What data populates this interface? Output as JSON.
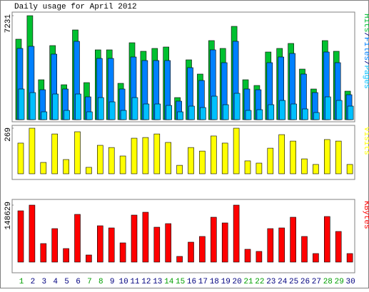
{
  "title": "Daily usage for April 2012",
  "chart_data": [
    {
      "type": "bar",
      "ylim": [
        0,
        7231
      ],
      "yticks": [
        7231
      ],
      "legend_separator": "/",
      "series": [
        {
          "name": "Hits",
          "color": "#00c030",
          "values": [
            5596,
            7231,
            2774,
            5151,
            2427,
            6240,
            2575,
            4854,
            4854,
            2526,
            5349,
            4755,
            4953,
            5052,
            1535,
            4160,
            3170,
            5498,
            4953,
            6488,
            2774,
            2377,
            4705,
            4953,
            5300,
            3516,
            2130,
            5498,
            4755,
            1981
          ]
        },
        {
          "name": "Files",
          "color": "#0080ff",
          "values": [
            4953,
            5101,
            2080,
            4557,
            2130,
            5448,
            1585,
            4259,
            4259,
            2130,
            4358,
            4111,
            4111,
            4111,
            1288,
            3616,
            2724,
            4854,
            3962,
            5448,
            2130,
            2080,
            3962,
            4358,
            4606,
            3170,
            1882,
            4705,
            3962,
            1734
          ]
        },
        {
          "name": "Pages",
          "color": "#00c0ff",
          "values": [
            2130,
            1882,
            545,
            1783,
            644,
            1783,
            545,
            1535,
            1238,
            644,
            1535,
            1090,
            1090,
            990,
            545,
            941,
            842,
            1634,
            1040,
            1832,
            644,
            693,
            1040,
            1337,
            1090,
            743,
            495,
            1585,
            1337,
            941
          ]
        }
      ]
    },
    {
      "type": "bar",
      "ylim": [
        0,
        269
      ],
      "yticks": [
        269
      ],
      "series": [
        {
          "name": "Visits",
          "color": "#ffff00",
          "values": [
            181,
            269,
            67,
            235,
            84,
            248,
            38,
            168,
            155,
            105,
            210,
            214,
            235,
            185,
            50,
            155,
            134,
            223,
            181,
            269,
            76,
            63,
            151,
            231,
            193,
            88,
            55,
            202,
            193,
            55
          ]
        }
      ]
    },
    {
      "type": "bar",
      "ylim": [
        0,
        148629
      ],
      "yticks": [
        148629
      ],
      "categories": [
        "1",
        "2",
        "3",
        "4",
        "5",
        "6",
        "7",
        "8",
        "9",
        "10",
        "11",
        "12",
        "13",
        "14",
        "15",
        "16",
        "17",
        "18",
        "19",
        "20",
        "21",
        "22",
        "23",
        "24",
        "25",
        "26",
        "27",
        "28",
        "29",
        "30"
      ],
      "category_colors": [
        "#00a000",
        "#000080",
        "#000080",
        "#000080",
        "#000080",
        "#000080",
        "#00a000",
        "#00a000",
        "#000080",
        "#000080",
        "#000080",
        "#000080",
        "#000080",
        "#00a000",
        "#00a000",
        "#000080",
        "#000080",
        "#000080",
        "#000080",
        "#000080",
        "#00a000",
        "#00a000",
        "#000080",
        "#000080",
        "#000080",
        "#000080",
        "#000080",
        "#00a000",
        "#00a000",
        "#000080"
      ],
      "series": [
        {
          "name": "KBytes",
          "color": "#ff0000",
          "values": [
            133766,
            148629,
            48305,
            87320,
            35300,
            124477,
            18579,
            94750,
            89177,
            50162,
            122619,
            130050,
            91035,
            100325,
            14863,
            52020,
            66883,
            117045,
            102182,
            148629,
            33441,
            27868,
            87320,
            89177,
            117045,
            66883,
            22294,
            118902,
            79888,
            22294
          ]
        }
      ]
    }
  ]
}
